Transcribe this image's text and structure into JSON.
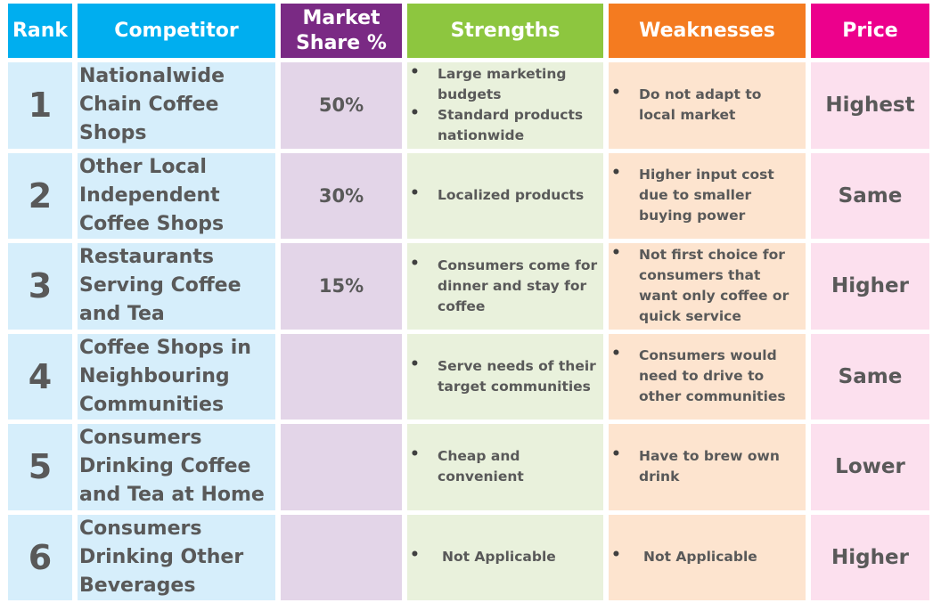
{
  "headers": {
    "rank": "Rank",
    "competitor": "Competitor",
    "market_share_line1": "Market",
    "market_share_line2": "Share %",
    "strengths": "Strengths",
    "weaknesses": "Weaknesses",
    "price": "Price"
  },
  "colors": {
    "header_blue": "#00aeef",
    "header_purple": "#7a2a84",
    "header_green": "#8dc63f",
    "header_orange": "#f47b20",
    "header_pink": "#ec008c"
  },
  "rows": [
    {
      "rank": "1",
      "competitor": "Nationalwide Chain Coffee Shops",
      "market_share": "50%",
      "strengths": [
        "Large marketing budgets",
        "Standard products nationwide"
      ],
      "weaknesses": [
        "Do not adapt to local market"
      ],
      "price": "Highest"
    },
    {
      "rank": "2",
      "competitor": "Other Local Independent Coffee Shops",
      "market_share": "30%",
      "strengths": [
        "Localized products"
      ],
      "weaknesses": [
        "Higher input cost due to smaller buying power"
      ],
      "price": "Same"
    },
    {
      "rank": "3",
      "competitor": "Restaurants Serving Coffee and Tea",
      "market_share": "15%",
      "strengths": [
        "Consumers come for dinner and stay for coffee"
      ],
      "weaknesses": [
        "Not first choice for consumers that want only coffee or quick service"
      ],
      "price": "Higher"
    },
    {
      "rank": "4",
      "competitor": "Coffee Shops in Neighbouring Communities",
      "market_share": "",
      "strengths": [
        "Serve needs of their target communities"
      ],
      "weaknesses": [
        "Consumers would need to drive to other communities"
      ],
      "price": "Same"
    },
    {
      "rank": "5",
      "competitor": "Consumers Drinking Coffee and Tea at Home",
      "market_share": "",
      "strengths": [
        "Cheap and convenient"
      ],
      "weaknesses": [
        "Have to brew own drink"
      ],
      "price": "Lower"
    },
    {
      "rank": "6",
      "competitor": "Consumers Drinking Other Beverages",
      "market_share": "",
      "strengths": [
        "Not Applicable"
      ],
      "weaknesses": [
        "Not Applicable"
      ],
      "price": "Higher"
    }
  ]
}
